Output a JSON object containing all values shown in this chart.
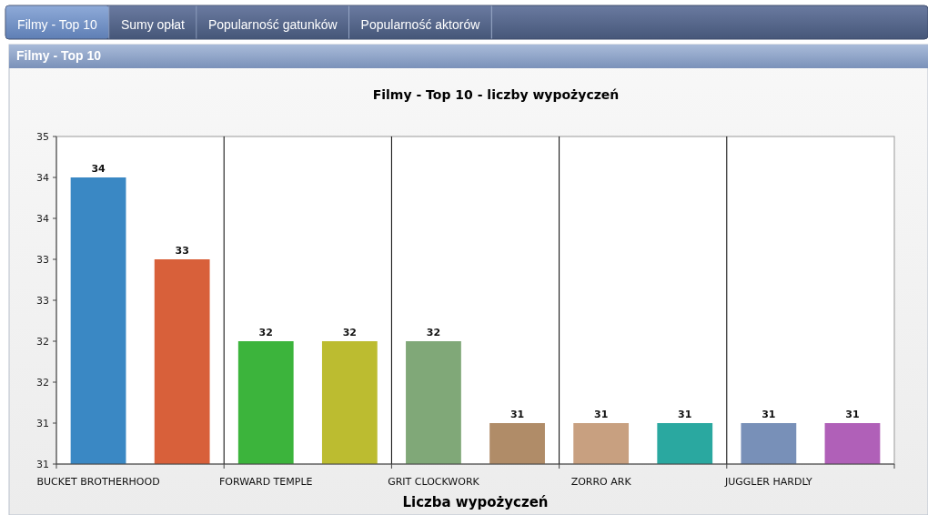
{
  "chart_data": {
    "type": "bar",
    "title": "Filmy - Top 10 - liczby wypożyczeń",
    "xlabel": "Liczba wypożyczeń",
    "annotations": [
      "Filmy - Top 10",
      "Sumy opłat",
      "Popularność gatunków",
      "Popularność aktorów",
      "Filmy - Top 10"
    ],
    "categories": [
      "BUCKET BROTHERHOOD",
      null,
      "FORWARD TEMPLE",
      null,
      "GRIT CLOCKWORK",
      null,
      "ZORRO ARK",
      null,
      "JUGGLER HARDLY",
      null
    ],
    "values": [
      34,
      33,
      32,
      32,
      32,
      31,
      31,
      31,
      31,
      31
    ],
    "colors": [
      "#3a88c4",
      "#d8603a",
      "#3cb43c",
      "#bcbc30",
      "#80a878",
      "#b08c68",
      "#c8a080",
      "#2aa8a0",
      "#7890b8",
      "#b060b8"
    ],
    "ylim": [
      30.5,
      34.5
    ],
    "yticks": [
      {
        "value": 30.5,
        "label": "31"
      },
      31,
      {
        "value": 31.5,
        "label": "32"
      },
      32,
      {
        "value": 32.5,
        "label": "33"
      },
      33,
      {
        "value": 33.5,
        "label": "34"
      },
      34,
      {
        "value": 34.5,
        "label": "35"
      }
    ],
    "grid": "x",
    "data_labels": true
  }
}
